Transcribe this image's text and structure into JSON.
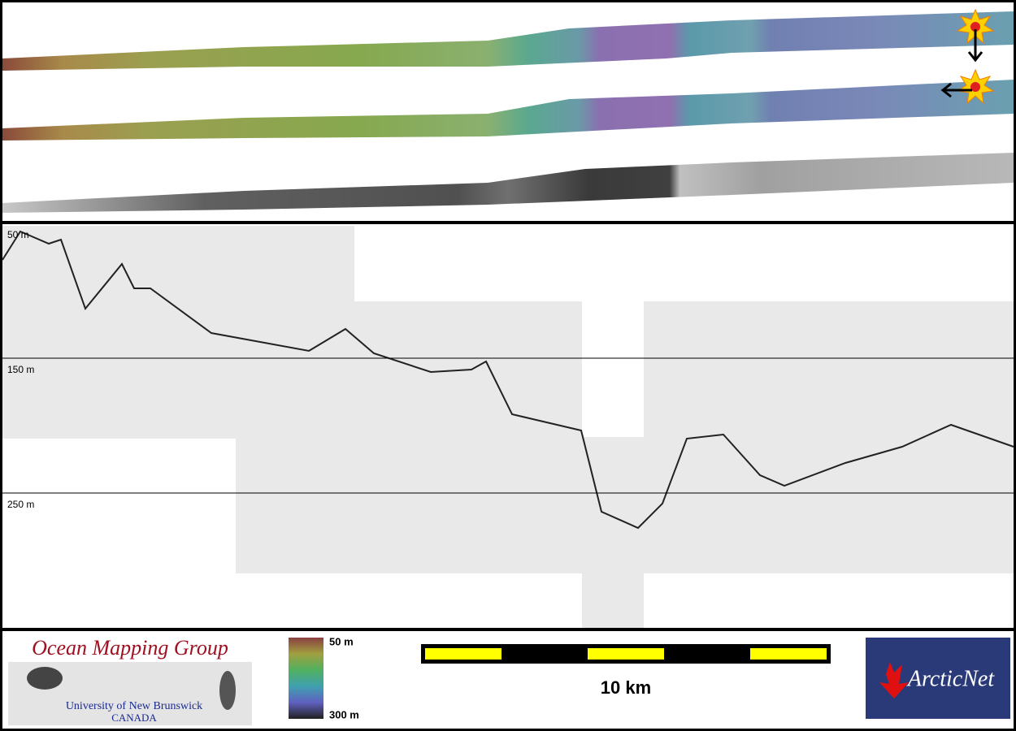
{
  "profile": {
    "depth_labels": [
      "50 m",
      "150 m",
      "250 m"
    ]
  },
  "footer": {
    "logo": {
      "title": "Ocean Mapping Group",
      "subtitle": "University of New Brunswick",
      "country": "CANADA"
    },
    "colorbar": {
      "top_label": "50 m",
      "bottom_label": "300 m"
    },
    "scale_bar": {
      "label": "10 km"
    },
    "partner": "ArcticNet"
  }
}
